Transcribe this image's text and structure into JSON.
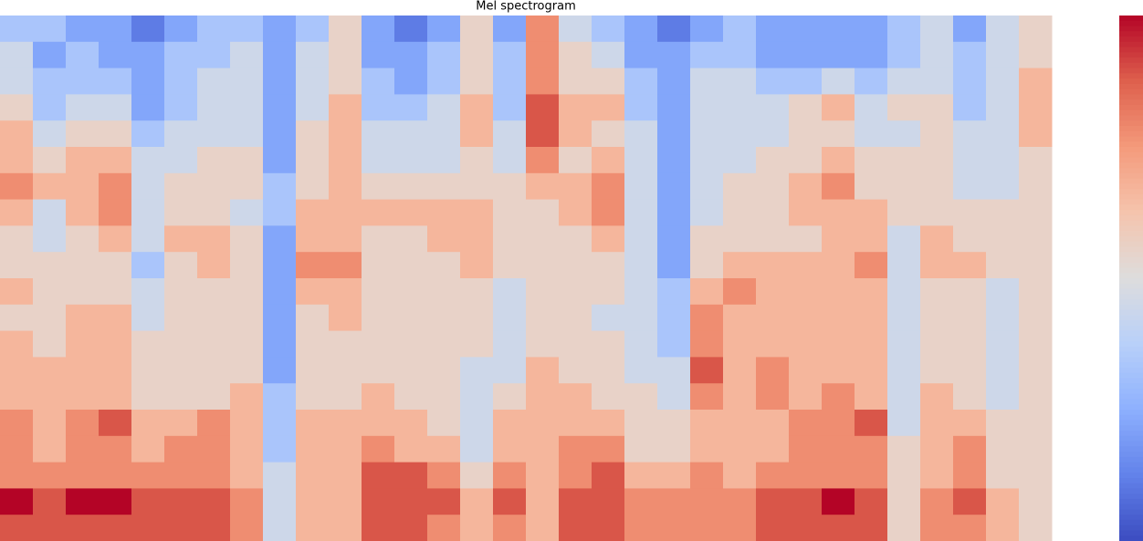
{
  "chart_data": {
    "type": "heatmap",
    "title": "Mel spectrogram",
    "colormap": "coolwarm",
    "vlim": [
      0,
      9
    ],
    "z": [
      [
        3,
        4,
        4,
        5,
        6,
        6,
        7,
        6,
        5,
        5,
        6,
        5,
        6,
        6,
        6,
        7,
        7,
        7,
        9,
        8
      ],
      [
        3,
        2,
        3,
        3,
        4,
        5,
        6,
        4,
        4,
        5,
        5,
        5,
        5,
        6,
        6,
        6,
        6,
        7,
        8,
        8
      ],
      [
        2,
        3,
        3,
        4,
        5,
        6,
        6,
        6,
        5,
        5,
        5,
        6,
        6,
        6,
        6,
        7,
        7,
        7,
        9,
        8
      ],
      [
        2,
        2,
        3,
        4,
        5,
        6,
        7,
        7,
        6,
        5,
        5,
        6,
        6,
        6,
        6,
        8,
        7,
        7,
        9,
        8
      ],
      [
        1,
        2,
        2,
        2,
        3,
        4,
        4,
        4,
        4,
        3,
        4,
        4,
        5,
        5,
        5,
        6,
        6,
        7,
        8,
        8
      ],
      [
        2,
        3,
        3,
        3,
        4,
        4,
        5,
        5,
        6,
        5,
        5,
        5,
        5,
        5,
        5,
        6,
        7,
        7,
        8,
        8
      ],
      [
        3,
        3,
        4,
        4,
        4,
        5,
        5,
        5,
        6,
        6,
        5,
        5,
        5,
        5,
        5,
        7,
        7,
        7,
        8,
        8
      ],
      [
        3,
        4,
        4,
        4,
        4,
        5,
        5,
        4,
        5,
        5,
        5,
        5,
        5,
        5,
        6,
        6,
        6,
        6,
        7,
        7
      ],
      [
        2,
        2,
        2,
        2,
        2,
        2,
        3,
        3,
        2,
        2,
        2,
        2,
        2,
        2,
        3,
        3,
        3,
        4,
        4,
        4
      ],
      [
        3,
        4,
        4,
        4,
        5,
        5,
        5,
        6,
        6,
        7,
        6,
        5,
        5,
        5,
        5,
        6,
        6,
        6,
        6,
        6
      ],
      [
        5,
        5,
        5,
        6,
        6,
        6,
        6,
        6,
        6,
        7,
        6,
        6,
        5,
        5,
        5,
        6,
        6,
        6,
        6,
        6
      ],
      [
        2,
        2,
        3,
        3,
        4,
        4,
        5,
        6,
        5,
        5,
        5,
        5,
        5,
        5,
        6,
        6,
        7,
        8,
        8,
        8
      ],
      [
        1,
        2,
        2,
        3,
        4,
        4,
        5,
        6,
        5,
        5,
        5,
        5,
        5,
        5,
        5,
        6,
        6,
        8,
        8,
        8
      ],
      [
        2,
        3,
        3,
        4,
        4,
        4,
        5,
        6,
        6,
        5,
        5,
        5,
        5,
        5,
        5,
        5,
        6,
        7,
        8,
        7
      ],
      [
        5,
        5,
        5,
        6,
        6,
        5,
        5,
        6,
        6,
        6,
        5,
        5,
        5,
        4,
        4,
        4,
        4,
        5,
        6,
        6
      ],
      [
        2,
        3,
        3,
        3,
        4,
        4,
        5,
        5,
        5,
        5,
        4,
        4,
        4,
        4,
        5,
        6,
        6,
        7,
        8,
        7
      ],
      [
        7,
        7,
        7,
        8,
        8,
        7,
        6,
        5,
        5,
        5,
        5,
        5,
        5,
        6,
        6,
        6,
        6,
        6,
        6,
        6
      ],
      [
        4,
        5,
        5,
        6,
        6,
        5,
        6,
        6,
        5,
        5,
        5,
        5,
        5,
        5,
        6,
        6,
        7,
        7,
        8,
        8
      ],
      [
        3,
        4,
        5,
        6,
        5,
        6,
        7,
        7,
        6,
        5,
        5,
        4,
        5,
        5,
        5,
        6,
        7,
        8,
        8,
        8
      ],
      [
        2,
        2,
        3,
        3,
        4,
        4,
        4,
        4,
        4,
        4,
        4,
        4,
        4,
        4,
        5,
        5,
        5,
        6,
        7,
        7
      ],
      [
        1,
        2,
        2,
        2,
        2,
        2,
        2,
        2,
        2,
        2,
        3,
        3,
        3,
        4,
        4,
        5,
        5,
        6,
        7,
        7
      ],
      [
        2,
        3,
        4,
        4,
        4,
        4,
        4,
        4,
        5,
        5,
        6,
        7,
        7,
        8,
        7,
        6,
        6,
        7,
        7,
        7
      ],
      [
        3,
        3,
        4,
        4,
        4,
        4,
        5,
        5,
        5,
        6,
        7,
        6,
        6,
        6,
        6,
        6,
        6,
        6,
        7,
        7
      ],
      [
        2,
        2,
        3,
        4,
        4,
        5,
        5,
        5,
        5,
        6,
        6,
        6,
        6,
        7,
        7,
        6,
        6,
        7,
        8,
        8
      ],
      [
        2,
        2,
        3,
        5,
        5,
        5,
        6,
        6,
        5,
        6,
        6,
        6,
        6,
        6,
        6,
        7,
        7,
        7,
        8,
        8
      ],
      [
        2,
        2,
        4,
        6,
        5,
        6,
        7,
        6,
        6,
        6,
        6,
        6,
        6,
        6,
        7,
        7,
        7,
        7,
        9,
        8
      ],
      [
        2,
        2,
        3,
        4,
        4,
        5,
        5,
        6,
        6,
        7,
        6,
        6,
        6,
        6,
        6,
        8,
        7,
        7,
        8,
        8
      ],
      [
        3,
        3,
        4,
        5,
        4,
        5,
        5,
        5,
        4,
        4,
        4,
        4,
        4,
        4,
        4,
        4,
        5,
        5,
        5,
        5
      ],
      [
        4,
        4,
        4,
        5,
        5,
        5,
        5,
        5,
        6,
        6,
        5,
        5,
        5,
        5,
        6,
        6,
        6,
        6,
        7,
        7
      ],
      [
        2,
        3,
        3,
        3,
        4,
        4,
        4,
        5,
        5,
        6,
        5,
        5,
        5,
        5,
        5,
        6,
        7,
        7,
        8,
        7
      ],
      [
        4,
        4,
        4,
        4,
        4,
        4,
        4,
        5,
        5,
        5,
        4,
        4,
        4,
        4,
        4,
        5,
        5,
        5,
        6,
        6
      ],
      [
        5,
        5,
        6,
        6,
        6,
        5,
        5,
        5,
        5,
        5,
        5,
        5,
        5,
        5,
        5,
        5,
        5,
        5,
        5,
        5
      ]
    ]
  }
}
